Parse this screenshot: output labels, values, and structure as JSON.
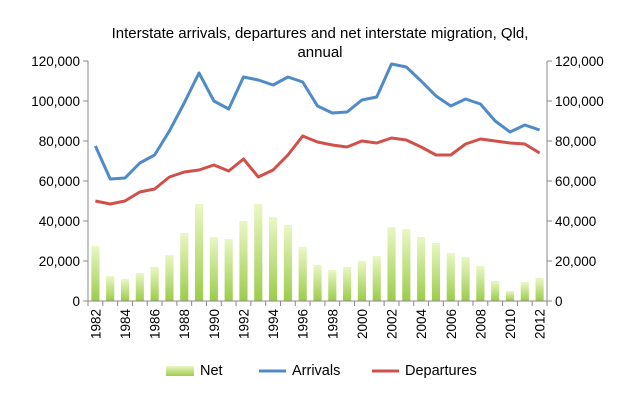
{
  "chart_data": {
    "type": "bar+line",
    "title_lines": [
      "Interstate arrivals, departures and net interstate migration, Qld,",
      "annual"
    ],
    "categories": [
      "1982",
      "1983",
      "1984",
      "1985",
      "1986",
      "1987",
      "1988",
      "1989",
      "1990",
      "1991",
      "1992",
      "1993",
      "1994",
      "1995",
      "1996",
      "1997",
      "1998",
      "1999",
      "2000",
      "2001",
      "2002",
      "2003",
      "2004",
      "2005",
      "2006",
      "2007",
      "2008",
      "2009",
      "2010",
      "2011",
      "2012"
    ],
    "x_tick_labels": [
      "1982",
      "1984",
      "1986",
      "1988",
      "1990",
      "1992",
      "1994",
      "1996",
      "1998",
      "2000",
      "2002",
      "2004",
      "2006",
      "2008",
      "2010",
      "2012"
    ],
    "ylim": [
      0,
      120000
    ],
    "y_tick_labels": [
      "0",
      "20,000",
      "40,000",
      "60,000",
      "80,000",
      "100,000",
      "120,000"
    ],
    "y_ticks": [
      0,
      20000,
      40000,
      60000,
      80000,
      100000,
      120000
    ],
    "secondary_axis": true,
    "grid": false,
    "legend_position": "bottom",
    "series": [
      {
        "name": "Net",
        "type": "bar",
        "color": "#a9d35a",
        "values": [
          27500,
          12500,
          11000,
          14000,
          17000,
          23000,
          34000,
          48500,
          32000,
          31000,
          40000,
          48500,
          42000,
          38000,
          27000,
          18000,
          15500,
          17000,
          20000,
          22500,
          37000,
          36000,
          32000,
          29000,
          24000,
          22000,
          17500,
          10000,
          5000,
          9500,
          11500
        ]
      },
      {
        "name": "Arrivals",
        "type": "line",
        "color": "#4f8ac9",
        "values": [
          77500,
          61000,
          61500,
          69000,
          73000,
          85000,
          99000,
          114000,
          100000,
          96000,
          112000,
          110500,
          108000,
          112000,
          109500,
          97500,
          94000,
          94500,
          100500,
          102000,
          118500,
          117000,
          110000,
          102500,
          97500,
          101000,
          98500,
          90000,
          84500,
          88000,
          85500
        ]
      },
      {
        "name": "Departures",
        "type": "line",
        "color": "#d0504a",
        "values": [
          50000,
          48500,
          50000,
          54500,
          56000,
          62000,
          64500,
          65500,
          68000,
          65000,
          71000,
          62000,
          65500,
          73000,
          82500,
          79500,
          78000,
          77000,
          80000,
          79000,
          81500,
          80500,
          77000,
          73000,
          73000,
          78500,
          81000,
          80000,
          79000,
          78500,
          74000
        ]
      }
    ]
  }
}
